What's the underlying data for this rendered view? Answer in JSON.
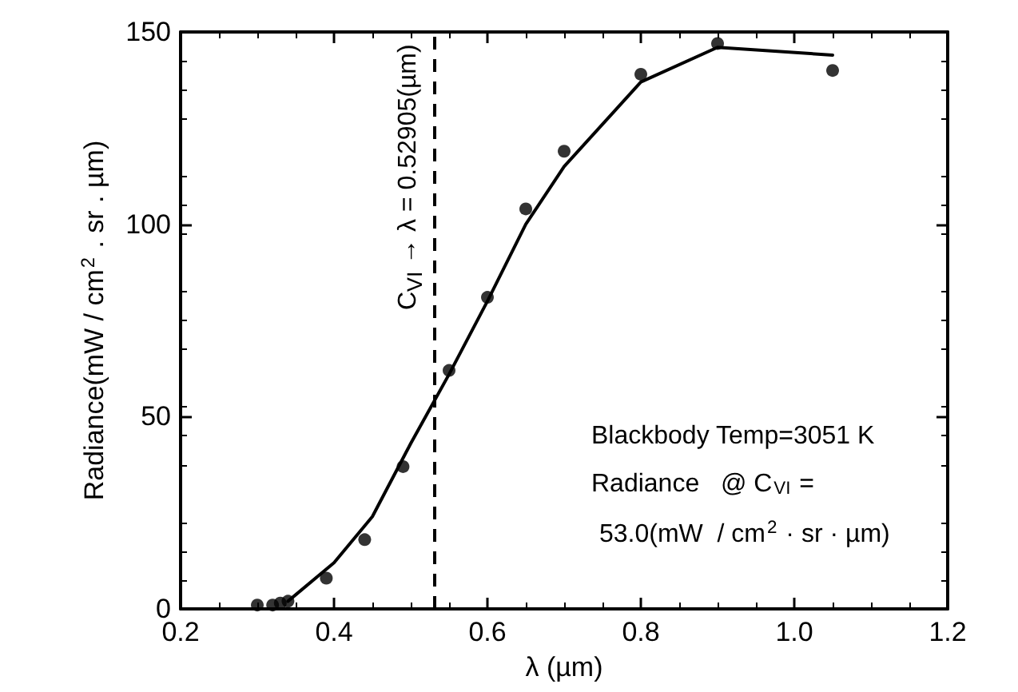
{
  "chart_data": {
    "type": "scatter",
    "xlabel": "λ (µm)",
    "ylabel": "Radiance(mW / cm$^{2}$ . sr . µm)",
    "xlim": [
      0.2,
      1.2
    ],
    "xticks": [
      0.2,
      0.4,
      0.6,
      0.8,
      {
        "value": 1,
        "label": "1.0"
      },
      1.2
    ],
    "ylim": [
      0,
      150
    ],
    "yticks": [
      0,
      50,
      100,
      150
    ],
    "grid": false,
    "series": [
      {
        "color": "#000000",
        "marker": "circle",
        "x": [
          0.3,
          0.32,
          0.33,
          0.34,
          0.39,
          0.44,
          0.49,
          0.55,
          0.6,
          0.65,
          0.7,
          0.8,
          0.9,
          1.05
        ],
        "values": [
          1,
          1,
          1.5,
          2,
          8,
          18,
          37,
          62,
          81,
          104,
          119,
          139,
          147,
          140
        ]
      },
      {
        "type": "line",
        "color": "#000000",
        "marker": "none",
        "line_style": "solid",
        "x": [
          0.34,
          0.4,
          0.45,
          0.5,
          0.55,
          0.6,
          0.65,
          0.7,
          0.8,
          0.9,
          1.05
        ],
        "values": [
          2,
          12,
          24,
          43,
          61,
          80,
          100,
          115,
          137,
          146,
          144
        ]
      }
    ],
    "ref_lines": [
      {
        "axis": "x",
        "value": 0.52905,
        "label": "C$_{VI}$ → λ = 0.52905(µm)",
        "color": "#000000",
        "line_style": "dashed"
      }
    ],
    "annotations": [
      "Blackbody Temp=3051 K",
      "Radiance   @ C$_{VI}$ =",
      "53.0(mW  / cm$^{2}$ · sr · µm)"
    ]
  }
}
